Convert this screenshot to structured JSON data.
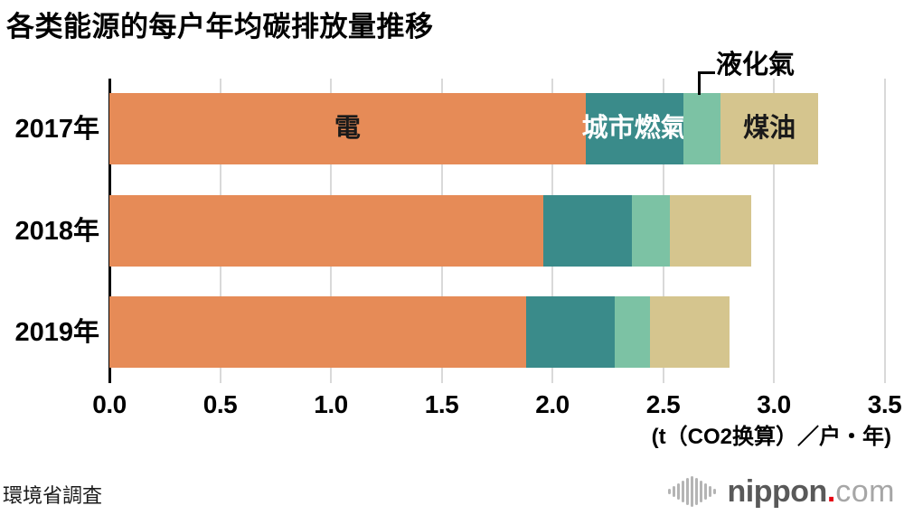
{
  "chart_data": {
    "type": "bar",
    "orientation": "horizontal",
    "stacked": true,
    "title": "各类能源的每户年均碳排放量推移",
    "categories": [
      "2017年",
      "2018年",
      "2019年"
    ],
    "series": [
      {
        "name": "電",
        "color": "#E68B57",
        "label_color": "#1a1a1a",
        "label_placement": "inside",
        "values": [
          2.15,
          1.96,
          1.88
        ]
      },
      {
        "name": "城市燃氣",
        "color": "#3A8B8A",
        "label_color": "#ffffff",
        "label_placement": "inside",
        "values": [
          0.44,
          0.4,
          0.4
        ]
      },
      {
        "name": "液化氣",
        "color": "#7CC2A4",
        "label_color": "#000000",
        "label_placement": "callout",
        "values": [
          0.17,
          0.17,
          0.16
        ]
      },
      {
        "name": "煤油",
        "color": "#D5C58E",
        "label_color": "#1a1a1a",
        "label_placement": "inside",
        "values": [
          0.44,
          0.37,
          0.36
        ]
      }
    ],
    "totals": [
      3.2,
      2.9,
      2.8
    ],
    "x_ticks": [
      "0.0",
      "0.5",
      "1.0",
      "1.5",
      "2.0",
      "2.5",
      "3.0",
      "3.5"
    ],
    "xlim": [
      0,
      3.5
    ],
    "unit_label": "(t（CO2换算）／户・年)",
    "grid": true,
    "gridline_color": "#d9d9d9",
    "axis_color": "#000000",
    "legend": "labels drawn inside first bar",
    "source": "環境省調査"
  },
  "logo": {
    "wordmark": "nippon",
    "dot": ".",
    "tld": "com",
    "wordmark_color": "#595959",
    "dot_color": "#e60012",
    "tld_color": "#a6a6a6"
  }
}
